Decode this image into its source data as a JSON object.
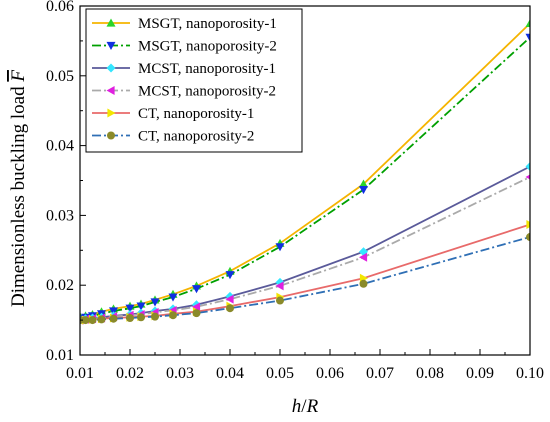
{
  "chart_data": {
    "type": "line",
    "xlabel_parts": [
      "h",
      "/",
      "R"
    ],
    "ylabel_text": "Dimensionless  buckling load",
    "ylabel_symbol": "F",
    "xlim": [
      0.01,
      0.1
    ],
    "ylim": [
      0.01,
      0.06
    ],
    "x_ticks": [
      "0.01",
      "0.02",
      "0.03",
      "0.04",
      "0.05",
      "0.06",
      "0.07",
      "0.08",
      "0.09",
      "0.10"
    ],
    "y_ticks": [
      "0.01",
      "0.02",
      "0.03",
      "0.04",
      "0.05",
      "0.06"
    ],
    "grid": false,
    "legend_position": "top-left",
    "x": [
      0.01,
      0.0111,
      0.0125,
      0.0143,
      0.0167,
      0.02,
      0.0222,
      0.025,
      0.0286,
      0.0333,
      0.04,
      0.05,
      0.0667,
      0.1
    ],
    "series": [
      {
        "name": "MSGT, nanoporosity-1",
        "color": "#f5b400",
        "dash": "solid",
        "marker": "triangle-up",
        "values": [
          0.0155,
          0.0156,
          0.0158,
          0.0162,
          0.0166,
          0.017,
          0.0173,
          0.0179,
          0.0187,
          0.0199,
          0.022,
          0.026,
          0.0345,
          0.0575
        ]
      },
      {
        "name": "MSGT, nanoporosity-2",
        "color": "#00a000",
        "dash": "dashdot",
        "marker": "triangle-down",
        "values": [
          0.0152,
          0.0154,
          0.0156,
          0.0159,
          0.0163,
          0.0167,
          0.017,
          0.0176,
          0.0183,
          0.0195,
          0.0215,
          0.0255,
          0.0337,
          0.0555
        ]
      },
      {
        "name": "MCST, nanoporosity-1",
        "color": "#5a5a9a",
        "dash": "solid",
        "marker": "diamond",
        "values": [
          0.0151,
          0.0152,
          0.0153,
          0.0154,
          0.0156,
          0.0158,
          0.016,
          0.0163,
          0.0166,
          0.0172,
          0.0184,
          0.0204,
          0.0248,
          0.037
        ]
      },
      {
        "name": "MCST, nanoporosity-2",
        "color": "#aaaaaa",
        "dash": "dashdot",
        "marker": "triangle-left",
        "values": [
          0.015,
          0.0151,
          0.0152,
          0.0153,
          0.0155,
          0.0157,
          0.0158,
          0.0161,
          0.0164,
          0.0169,
          0.018,
          0.0199,
          0.024,
          0.0355
        ]
      },
      {
        "name": "CT, nanoporosity-1",
        "color": "#e86a6a",
        "dash": "solid",
        "marker": "triangle-right",
        "values": [
          0.015,
          0.015,
          0.0151,
          0.0152,
          0.0153,
          0.0154,
          0.0155,
          0.0156,
          0.0159,
          0.0162,
          0.017,
          0.0183,
          0.021,
          0.0287
        ]
      },
      {
        "name": "CT, nanoporosity-2",
        "color": "#2f6fb5",
        "dash": "dashdot",
        "marker": "circle",
        "values": [
          0.015,
          0.015,
          0.015,
          0.0151,
          0.0152,
          0.0153,
          0.0154,
          0.0155,
          0.0157,
          0.016,
          0.0167,
          0.0178,
          0.0202,
          0.0269
        ]
      }
    ],
    "marker_colors": {
      "triangle-up": "#2bd42b",
      "triangle-down": "#1030e0",
      "diamond": "#33e6ff",
      "triangle-left": "#e020e0",
      "triangle-right": "#f2e600",
      "circle": "#8a8a2a"
    }
  }
}
